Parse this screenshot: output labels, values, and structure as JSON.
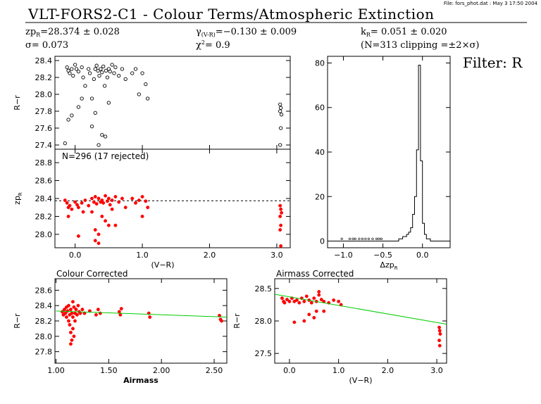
{
  "header": {
    "file_note": "File: fors_phot.dat : May  3 17:50 2004",
    "title": "VLT-FORS2-C1 - Colour Terms/Atmospheric Extinction",
    "zp_text": "zp",
    "zp_sub": "R",
    "zp_value": "=28.374 ± 0.028",
    "gamma_text": "γ",
    "gamma_sub": "(V-R)",
    "gamma_value": "=−0.130 ± 0.009",
    "k_text": "k",
    "k_sub": "R",
    "k_value": "= 0.051 ± 0.020",
    "sigma_text": "σ=  0.073",
    "chi_text": "χ",
    "chi_sup": "2",
    "chi_value": "=   0.9",
    "n_text": "(N=313 clipping =±2×σ)",
    "filter_label": "Filter: R"
  },
  "colors": {
    "points_black": "#000000",
    "points_red": "#ff0000",
    "fit_line": "#00cc00",
    "axes": "#000000"
  },
  "chart_data": [
    {
      "id": "panel-r-minus-r",
      "type": "scatter",
      "ylabel": "R−r",
      "xlim": [
        -0.3,
        3.2
      ],
      "ylim": [
        27.35,
        28.45
      ],
      "yticks": [
        "27.4",
        "27.6",
        "27.8",
        "28.0",
        "28.2",
        "28.4"
      ],
      "yticks_values": [
        27.4,
        27.6,
        27.8,
        28.0,
        28.2,
        28.4
      ],
      "color": "black",
      "points": [
        [
          -0.12,
          28.32
        ],
        [
          -0.1,
          28.28
        ],
        [
          -0.08,
          28.25
        ],
        [
          -0.05,
          28.3
        ],
        [
          -0.03,
          28.22
        ],
        [
          0.0,
          28.35
        ],
        [
          0.02,
          28.3
        ],
        [
          0.05,
          28.27
        ],
        [
          0.1,
          28.32
        ],
        [
          0.12,
          28.2
        ],
        [
          0.15,
          28.1
        ],
        [
          0.2,
          28.3
        ],
        [
          0.22,
          28.25
        ],
        [
          0.25,
          27.95
        ],
        [
          0.28,
          28.18
        ],
        [
          0.3,
          28.3
        ],
        [
          0.32,
          28.34
        ],
        [
          0.34,
          28.28
        ],
        [
          0.36,
          28.22
        ],
        [
          0.38,
          28.3
        ],
        [
          0.4,
          28.26
        ],
        [
          0.42,
          28.33
        ],
        [
          0.44,
          28.1
        ],
        [
          0.46,
          28.28
        ],
        [
          0.48,
          28.2
        ],
        [
          0.5,
          28.3
        ],
        [
          0.52,
          28.27
        ],
        [
          0.55,
          28.35
        ],
        [
          0.58,
          28.25
        ],
        [
          0.6,
          28.32
        ],
        [
          0.65,
          28.22
        ],
        [
          0.7,
          28.3
        ],
        [
          0.75,
          28.18
        ],
        [
          0.85,
          28.25
        ],
        [
          0.9,
          28.3
        ],
        [
          0.95,
          28.0
        ],
        [
          1.0,
          28.25
        ],
        [
          1.05,
          28.12
        ],
        [
          1.08,
          27.95
        ],
        [
          -0.1,
          27.7
        ],
        [
          -0.05,
          27.75
        ],
        [
          0.05,
          27.85
        ],
        [
          0.25,
          27.62
        ],
        [
          0.3,
          27.78
        ],
        [
          0.4,
          27.52
        ],
        [
          0.45,
          27.5
        ],
        [
          0.35,
          27.4
        ],
        [
          -0.15,
          27.42
        ],
        [
          0.1,
          27.95
        ],
        [
          0.5,
          27.9
        ],
        [
          3.05,
          27.88
        ],
        [
          3.06,
          27.84
        ],
        [
          3.05,
          27.8
        ],
        [
          3.07,
          27.76
        ],
        [
          3.06,
          27.6
        ],
        [
          3.05,
          27.4
        ]
      ]
    },
    {
      "id": "panel-zp",
      "type": "scatter",
      "ylabel": "zp",
      "ylabel_sub": "R",
      "annotation": "N=296 (17 rejected)",
      "xlabel": "(V−R)",
      "xlim": [
        -0.3,
        3.2
      ],
      "ylim": [
        27.85,
        28.95
      ],
      "xticks": [
        "0.0",
        "1.0",
        "2.0",
        "3.0"
      ],
      "xticks_values": [
        0.0,
        1.0,
        2.0,
        3.0
      ],
      "yticks": [
        "28.0",
        "28.2",
        "28.4",
        "28.6",
        "28.8"
      ],
      "yticks_values": [
        28.0,
        28.2,
        28.4,
        28.6,
        28.8
      ],
      "reference_y": 28.374,
      "color": "red",
      "points": [
        [
          -0.15,
          28.38
        ],
        [
          -0.12,
          28.35
        ],
        [
          -0.1,
          28.3
        ],
        [
          -0.08,
          28.32
        ],
        [
          -0.05,
          28.28
        ],
        [
          0.0,
          28.36
        ],
        [
          0.03,
          28.33
        ],
        [
          0.05,
          28.3
        ],
        [
          0.1,
          28.35
        ],
        [
          0.12,
          28.25
        ],
        [
          0.15,
          28.38
        ],
        [
          0.2,
          28.32
        ],
        [
          0.25,
          28.4
        ],
        [
          0.28,
          28.36
        ],
        [
          0.3,
          28.42
        ],
        [
          0.32,
          28.34
        ],
        [
          0.35,
          28.4
        ],
        [
          0.38,
          28.36
        ],
        [
          0.4,
          28.38
        ],
        [
          0.42,
          28.35
        ],
        [
          0.45,
          28.43
        ],
        [
          0.48,
          28.37
        ],
        [
          0.5,
          28.4
        ],
        [
          0.52,
          28.33
        ],
        [
          0.55,
          28.38
        ],
        [
          0.6,
          28.42
        ],
        [
          0.65,
          28.36
        ],
        [
          0.7,
          28.4
        ],
        [
          0.75,
          28.3
        ],
        [
          0.85,
          28.4
        ],
        [
          0.9,
          28.35
        ],
        [
          0.95,
          28.38
        ],
        [
          1.0,
          28.42
        ],
        [
          1.05,
          28.37
        ],
        [
          1.08,
          28.3
        ],
        [
          0.4,
          28.2
        ],
        [
          0.45,
          28.15
        ],
        [
          0.5,
          28.1
        ],
        [
          0.3,
          28.05
        ],
        [
          0.35,
          28.0
        ],
        [
          0.6,
          28.1
        ],
        [
          0.25,
          28.25
        ],
        [
          -0.1,
          28.2
        ],
        [
          0.05,
          27.98
        ],
        [
          0.55,
          28.28
        ],
        [
          1.0,
          28.2
        ],
        [
          3.05,
          28.32
        ],
        [
          3.06,
          28.28
        ],
        [
          3.07,
          28.24
        ],
        [
          3.05,
          28.2
        ],
        [
          3.06,
          28.1
        ],
        [
          3.05,
          28.05
        ],
        [
          0.3,
          27.93
        ],
        [
          0.35,
          27.9
        ],
        [
          3.06,
          27.87
        ]
      ]
    },
    {
      "id": "panel-histogram",
      "type": "bar",
      "xlabel": "Δzp",
      "xlabel_sub": "R",
      "xlim": [
        -1.2,
        0.35
      ],
      "ylim": [
        -3,
        83
      ],
      "xticks": [
        "−1.0",
        "−0.5",
        "0.0"
      ],
      "xticks_values": [
        -1.0,
        -0.5,
        0.0
      ],
      "yticks": [
        "0",
        "20",
        "40",
        "60",
        "80"
      ],
      "yticks_values": [
        0,
        20,
        40,
        60,
        80
      ],
      "bin_width": 0.025,
      "bin_start": -0.3,
      "counts": [
        1,
        1,
        2,
        2,
        3,
        4,
        6,
        12,
        20,
        41,
        79,
        36,
        8,
        3,
        1,
        1
      ],
      "sparse_markers": [
        -1.02,
        -0.92,
        -0.88,
        -0.85,
        -0.8,
        -0.76,
        -0.72,
        -0.68,
        -0.63,
        -0.58,
        -0.55,
        -0.52
      ]
    },
    {
      "id": "panel-colour-corrected",
      "type": "scatter",
      "title": "Colour Corrected",
      "xlabel": "Airmass",
      "ylabel": "R−r",
      "xlim": [
        0.99,
        2.62
      ],
      "ylim": [
        27.65,
        28.75
      ],
      "xticks": [
        "1.00",
        "1.50",
        "2.00",
        "2.50"
      ],
      "xticks_values": [
        1.0,
        1.5,
        2.0,
        2.5
      ],
      "yticks": [
        "27.8",
        "28.0",
        "28.2",
        "28.4",
        "28.6"
      ],
      "yticks_values": [
        27.8,
        28.0,
        28.2,
        28.4,
        28.6
      ],
      "fit": [
        [
          1.0,
          28.33
        ],
        [
          2.62,
          28.25
        ]
      ],
      "color": "red",
      "points": [
        [
          1.06,
          28.32
        ],
        [
          1.07,
          28.28
        ],
        [
          1.08,
          28.35
        ],
        [
          1.09,
          28.3
        ],
        [
          1.1,
          28.38
        ],
        [
          1.1,
          28.25
        ],
        [
          1.11,
          28.33
        ],
        [
          1.12,
          28.2
        ],
        [
          1.12,
          28.4
        ],
        [
          1.13,
          28.28
        ],
        [
          1.13,
          28.15
        ],
        [
          1.14,
          28.35
        ],
        [
          1.14,
          28.05
        ],
        [
          1.15,
          28.3
        ],
        [
          1.15,
          27.95
        ],
        [
          1.16,
          28.25
        ],
        [
          1.16,
          28.1
        ],
        [
          1.17,
          28.38
        ],
        [
          1.17,
          28.0
        ],
        [
          1.18,
          28.3
        ],
        [
          1.18,
          28.2
        ],
        [
          1.19,
          28.35
        ],
        [
          1.2,
          28.28
        ],
        [
          1.21,
          28.4
        ],
        [
          1.22,
          28.32
        ],
        [
          1.23,
          28.3
        ],
        [
          1.25,
          28.35
        ],
        [
          1.27,
          28.3
        ],
        [
          1.32,
          28.33
        ],
        [
          1.38,
          28.28
        ],
        [
          1.4,
          28.35
        ],
        [
          1.42,
          28.3
        ],
        [
          1.6,
          28.32
        ],
        [
          1.61,
          28.28
        ],
        [
          1.62,
          28.36
        ],
        [
          1.88,
          28.3
        ],
        [
          1.89,
          28.25
        ],
        [
          2.55,
          28.27
        ],
        [
          2.56,
          28.22
        ],
        [
          2.57,
          28.2
        ],
        [
          1.14,
          27.9
        ],
        [
          1.16,
          28.45
        ]
      ]
    },
    {
      "id": "panel-airmass-corrected",
      "type": "scatter",
      "title": "Airmass Corrected",
      "xlabel": "(V−R)",
      "ylabel": "R−r",
      "xlim": [
        -0.3,
        3.2
      ],
      "ylim": [
        27.35,
        28.65
      ],
      "xticks": [
        "0.0",
        "1.0",
        "2.0",
        "3.0"
      ],
      "xticks_values": [
        0.0,
        1.0,
        2.0,
        3.0
      ],
      "yticks": [
        "27.5",
        "28.0",
        "28.5"
      ],
      "yticks_values": [
        27.5,
        28.0,
        28.5
      ],
      "fit": [
        [
          -0.3,
          28.41
        ],
        [
          3.2,
          27.95
        ]
      ],
      "color": "red",
      "points": [
        [
          -0.15,
          28.35
        ],
        [
          -0.12,
          28.3
        ],
        [
          -0.1,
          28.28
        ],
        [
          -0.05,
          28.33
        ],
        [
          0.0,
          28.3
        ],
        [
          0.05,
          28.35
        ],
        [
          0.1,
          28.3
        ],
        [
          0.15,
          28.32
        ],
        [
          0.2,
          28.28
        ],
        [
          0.25,
          28.35
        ],
        [
          0.3,
          28.3
        ],
        [
          0.35,
          28.38
        ],
        [
          0.4,
          28.32
        ],
        [
          0.45,
          28.28
        ],
        [
          0.5,
          28.35
        ],
        [
          0.55,
          28.3
        ],
        [
          0.6,
          28.4
        ],
        [
          0.65,
          28.33
        ],
        [
          0.7,
          28.3
        ],
        [
          0.8,
          28.28
        ],
        [
          0.9,
          28.32
        ],
        [
          1.0,
          28.3
        ],
        [
          1.05,
          28.25
        ],
        [
          0.4,
          28.1
        ],
        [
          0.5,
          28.05
        ],
        [
          0.55,
          28.15
        ],
        [
          0.3,
          28.0
        ],
        [
          0.1,
          27.98
        ],
        [
          0.6,
          28.45
        ],
        [
          0.7,
          28.15
        ],
        [
          3.05,
          27.9
        ],
        [
          3.06,
          27.85
        ],
        [
          3.07,
          27.8
        ],
        [
          3.05,
          27.7
        ],
        [
          3.06,
          27.62
        ]
      ]
    }
  ]
}
